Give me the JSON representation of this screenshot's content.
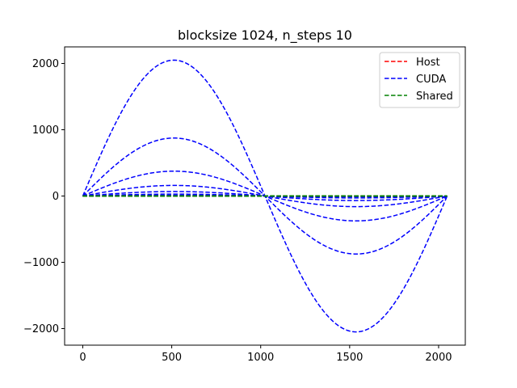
{
  "chart_data": {
    "type": "line",
    "title": "blocksize 1024, n_steps 10",
    "xlabel": "",
    "ylabel": "",
    "xlim": [
      -102,
      2150
    ],
    "ylim": [
      -2250,
      2250
    ],
    "xticks": [
      0,
      500,
      1000,
      1500,
      2000
    ],
    "xtick_labels": [
      "0",
      "500",
      "1000",
      "1500",
      "2000"
    ],
    "yticks": [
      -2000,
      -1000,
      0,
      1000,
      2000
    ],
    "ytick_labels": [
      "−2000",
      "−1000",
      "0",
      "1000",
      "2000"
    ],
    "grid": false,
    "legend_position": "top-right",
    "period": 2048,
    "series": [
      {
        "name": "Host",
        "color": "#ff0000",
        "style": "dashed",
        "amplitudes": [
          0,
          0,
          0,
          0,
          0,
          0,
          0,
          0,
          0,
          0
        ]
      },
      {
        "name": "CUDA",
        "color": "#0000ff",
        "style": "dashed",
        "amplitudes": [
          2050,
          875,
          375,
          160,
          68,
          29,
          12,
          5,
          2,
          1
        ]
      },
      {
        "name": "Shared",
        "color": "#008000",
        "style": "dashed",
        "amplitudes": [
          0,
          0,
          0,
          0,
          0,
          0,
          0,
          0,
          0,
          0
        ]
      }
    ]
  }
}
